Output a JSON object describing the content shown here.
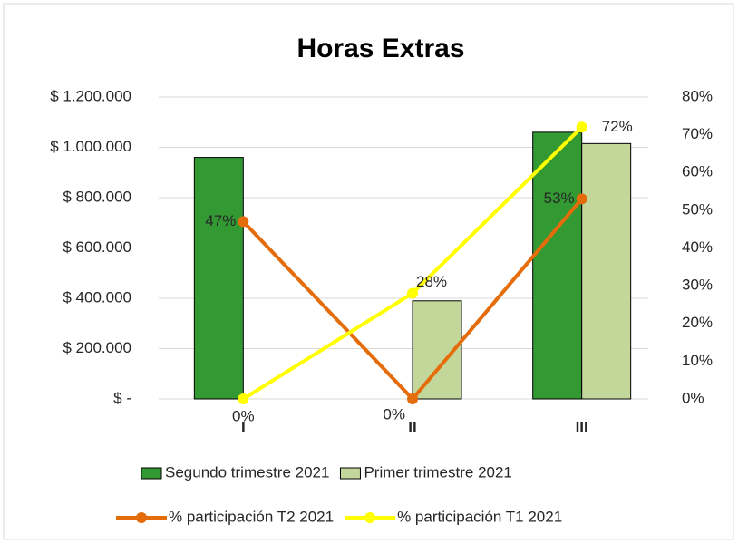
{
  "chart_data": {
    "type": "bar",
    "title": "Horas Extras",
    "categories": [
      "I",
      "II",
      "III"
    ],
    "series": [
      {
        "name": "Segundo trimestre 2021",
        "color": "#339933",
        "values": [
          960000,
          0,
          1060000
        ]
      },
      {
        "name": "Primer trimestre 2021",
        "color": "#c4d79b",
        "values": [
          0,
          390000,
          1015000
        ]
      },
      {
        "name": "% participación T2 2021",
        "type": "line",
        "axis": "y2",
        "color": "#e46c0a",
        "values": [
          47,
          0,
          53
        ],
        "value_labels": [
          "47%",
          "0%",
          "53%"
        ]
      },
      {
        "name": "% participación T1 2021",
        "type": "line",
        "axis": "y2",
        "color": "#ffff00",
        "values": [
          0,
          28,
          72
        ],
        "value_labels": [
          "0%",
          "28%",
          "72%"
        ]
      }
    ],
    "ylim": [
      0,
      1200000
    ],
    "yticks": [
      {
        "value": 0,
        "label": "$ -"
      },
      {
        "value": 200000,
        "label": "$ 200.000"
      },
      {
        "value": 400000,
        "label": "$ 400.000"
      },
      {
        "value": 600000,
        "label": "$ 600.000"
      },
      {
        "value": 800000,
        "label": "$ 800.000"
      },
      {
        "value": 1000000,
        "label": "$ 1.000.000"
      },
      {
        "value": 1200000,
        "label": "$ 1.200.000"
      }
    ],
    "y2lim": [
      0,
      80
    ],
    "y2ticks": [
      {
        "value": 0,
        "label": "0%"
      },
      {
        "value": 10,
        "label": "10%"
      },
      {
        "value": 20,
        "label": "20%"
      },
      {
        "value": 30,
        "label": "30%"
      },
      {
        "value": 40,
        "label": "40%"
      },
      {
        "value": 50,
        "label": "50%"
      },
      {
        "value": 60,
        "label": "60%"
      },
      {
        "value": 70,
        "label": "70%"
      },
      {
        "value": 80,
        "label": "80%"
      }
    ],
    "grid": true,
    "legend": "bottom"
  }
}
